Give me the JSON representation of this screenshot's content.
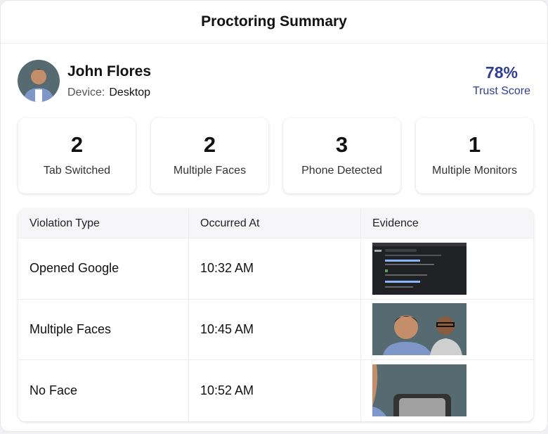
{
  "header": {
    "title": "Proctoring Summary"
  },
  "candidate": {
    "name": "John Flores",
    "device_label": "Device:",
    "device": "Desktop",
    "trust_score": "78%",
    "trust_label": "Trust Score"
  },
  "colors": {
    "accent": "#2e3f93"
  },
  "stats": [
    {
      "value": "2",
      "label": "Tab Switched"
    },
    {
      "value": "2",
      "label": "Multiple Faces"
    },
    {
      "value": "3",
      "label": "Phone Detected"
    },
    {
      "value": "1",
      "label": "Multiple Monitors"
    }
  ],
  "table": {
    "headers": [
      "Violation Type",
      "Occurred At",
      "Evidence"
    ],
    "rows": [
      {
        "type": "Opened Google",
        "time": "10:32 AM",
        "evidence": "browser-screenshot"
      },
      {
        "type": "Multiple Faces",
        "time": "10:45 AM",
        "evidence": "two-faces-photo"
      },
      {
        "type": "No Face",
        "time": "10:52 AM",
        "evidence": "empty-chair-photo"
      }
    ]
  }
}
